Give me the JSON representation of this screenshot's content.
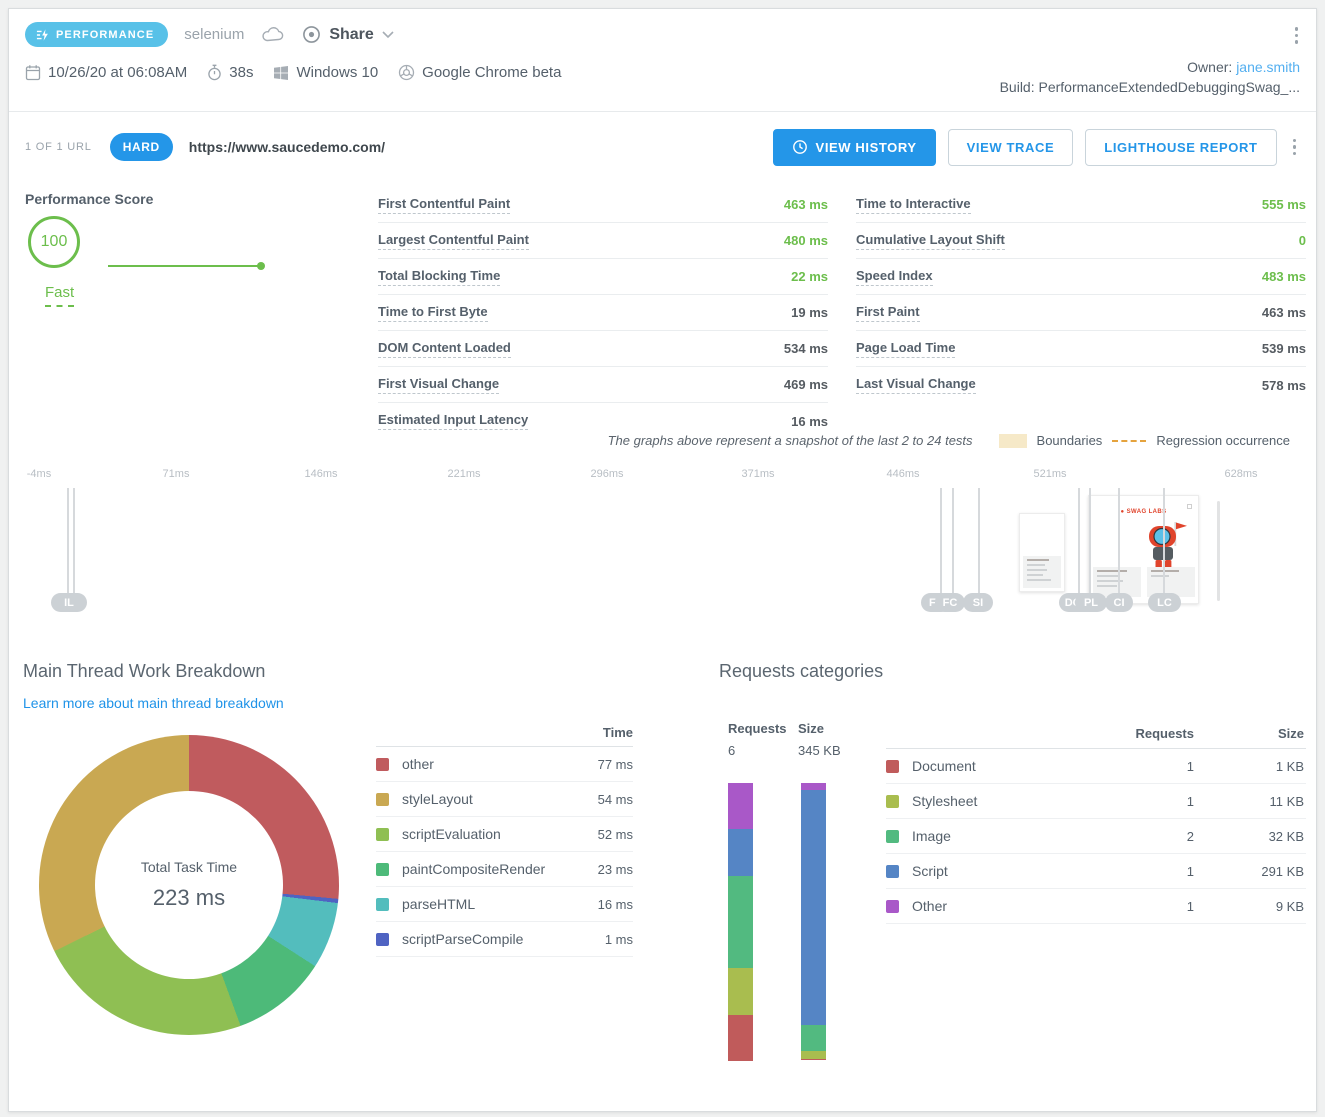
{
  "header": {
    "badge": "PERFORMANCE",
    "framework": "selenium",
    "share": "Share",
    "date": "10/26/20 at 06:08AM",
    "duration": "38s",
    "os": "Windows 10",
    "browser": "Google Chrome beta",
    "owner_label": "Owner: ",
    "owner_name": "jane.smith",
    "build_label": "Build: PerformanceExtendedDebuggingSwag_..."
  },
  "url_bar": {
    "count": "1 OF 1 URL",
    "difficulty": "HARD",
    "url": "https://www.saucedemo.com/",
    "view_history": "VIEW HISTORY",
    "view_trace": "VIEW TRACE",
    "lighthouse": "LIGHTHOUSE REPORT"
  },
  "score": {
    "title": "Performance Score",
    "value": "100",
    "rating": "Fast"
  },
  "metrics": {
    "left": [
      {
        "label": "First Contentful Paint",
        "value": "463 ms",
        "green": true
      },
      {
        "label": "Largest Contentful Paint",
        "value": "480 ms",
        "green": true
      },
      {
        "label": "Total Blocking Time",
        "value": "22 ms",
        "green": true
      },
      {
        "label": "Time to First Byte",
        "value": "19 ms",
        "green": false
      },
      {
        "label": "DOM Content Loaded",
        "value": "534 ms",
        "green": false
      },
      {
        "label": "First Visual Change",
        "value": "469 ms",
        "green": false
      },
      {
        "label": "Estimated Input Latency",
        "value": "16 ms",
        "green": false
      }
    ],
    "right": [
      {
        "label": "Time to Interactive",
        "value": "555 ms",
        "green": true
      },
      {
        "label": "Cumulative Layout Shift",
        "value": "0",
        "green": true
      },
      {
        "label": "Speed Index",
        "value": "483 ms",
        "green": true
      },
      {
        "label": "First Paint",
        "value": "463 ms",
        "green": false
      },
      {
        "label": "Page Load Time",
        "value": "539 ms",
        "green": false
      },
      {
        "label": "Last Visual Change",
        "value": "578 ms",
        "green": false
      }
    ]
  },
  "note": {
    "text": "The graphs above represent a snapshot of the last 2 to 24 tests",
    "boundaries": "Boundaries",
    "regression": "Regression occurrence"
  },
  "timeline": {
    "ticks": [
      "-4ms",
      "71ms",
      "146ms",
      "221ms",
      "296ms",
      "371ms",
      "446ms",
      "521ms",
      "628ms"
    ],
    "markers": [
      "IL",
      "FV",
      "FC",
      "SI",
      "DCL",
      "PL",
      "CI",
      "LC"
    ],
    "filmstrip_brand": "SWAG LABS"
  },
  "main_thread": {
    "title": "Main Thread Work Breakdown",
    "link": "Learn more about main thread breakdown",
    "time_header": "Time",
    "center_label": "Total Task Time",
    "center_value": "223 ms",
    "legend": [
      {
        "label": "other",
        "value": "77 ms",
        "color": "#c05b5e"
      },
      {
        "label": "styleLayout",
        "value": "54 ms",
        "color": "#c9a852"
      },
      {
        "label": "scriptEvaluation",
        "value": "52 ms",
        "color": "#8fbf53"
      },
      {
        "label": "paintCompositeRender",
        "value": "23 ms",
        "color": "#4dba79"
      },
      {
        "label": "parseHTML",
        "value": "16 ms",
        "color": "#53bdbd"
      },
      {
        "label": "scriptParseCompile",
        "value": "1 ms",
        "color": "#4f63c2"
      }
    ]
  },
  "requests": {
    "title": "Requests categories",
    "requests_header": "Requests",
    "size_header": "Size",
    "total_requests": "6",
    "total_size": "345 KB",
    "rows": [
      {
        "label": "Document",
        "requests": "1",
        "size": "1 KB",
        "color": "#c05b5b"
      },
      {
        "label": "Stylesheet",
        "requests": "1",
        "size": "11 KB",
        "color": "#a9bd4f"
      },
      {
        "label": "Image",
        "requests": "2",
        "size": "32 KB",
        "color": "#52ba80"
      },
      {
        "label": "Script",
        "requests": "1",
        "size": "291 KB",
        "color": "#5585c5"
      },
      {
        "label": "Other",
        "requests": "1",
        "size": "9 KB",
        "color": "#a958c8"
      }
    ]
  },
  "chart_data": [
    {
      "type": "pie",
      "title": "Main Thread Work Breakdown",
      "center_label": "Total Task Time",
      "center_value": "223 ms",
      "total_ms": 223,
      "labels": [
        "other",
        "styleLayout",
        "scriptEvaluation",
        "paintCompositeRender",
        "parseHTML",
        "scriptParseCompile"
      ],
      "values": [
        77,
        54,
        52,
        23,
        16,
        1
      ],
      "colors": [
        "#c05b5e",
        "#c9a852",
        "#8fbf53",
        "#4dba79",
        "#53bdbd",
        "#4f63c2"
      ]
    },
    {
      "type": "bar",
      "subtype": "stacked-vertical",
      "title": "Requests categories",
      "categories": [
        "Document",
        "Stylesheet",
        "Image",
        "Script",
        "Other"
      ],
      "colors": [
        "#c05b5b",
        "#a9bd4f",
        "#52ba80",
        "#5585c5",
        "#a958c8"
      ],
      "series": [
        {
          "name": "Requests",
          "total": 6,
          "values": [
            1,
            1,
            2,
            1,
            1
          ]
        },
        {
          "name": "Size (KB)",
          "total": 345,
          "values": [
            1,
            11,
            32,
            291,
            9
          ]
        }
      ],
      "stack_order_top_to_bottom": [
        "Other",
        "Script",
        "Image",
        "Stylesheet",
        "Document"
      ]
    },
    {
      "type": "timeline",
      "unit": "ms",
      "ticks": [
        -4,
        71,
        146,
        221,
        296,
        371,
        446,
        521,
        628
      ],
      "markers": [
        {
          "label": "IL",
          "ms": 16
        },
        {
          "label": "FV",
          "ms": 469
        },
        {
          "label": "FC",
          "ms": 463
        },
        {
          "label": "SI",
          "ms": 483
        },
        {
          "label": "DCL",
          "ms": 534
        },
        {
          "label": "PL",
          "ms": 539
        },
        {
          "label": "CI",
          "ms": 555
        },
        {
          "label": "LC",
          "ms": 578
        }
      ]
    }
  ]
}
